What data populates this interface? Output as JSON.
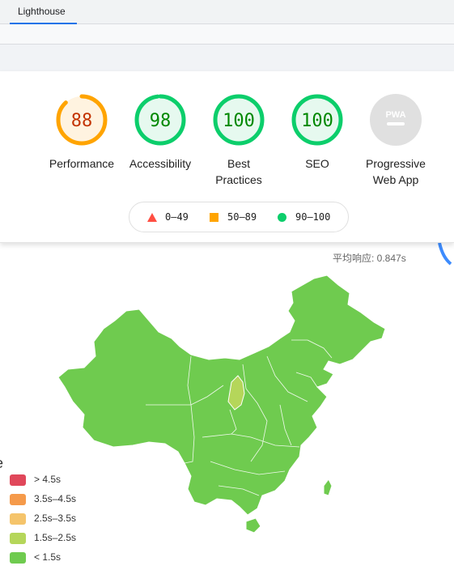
{
  "devtools": {
    "tab_label": "Lighthouse"
  },
  "scores": [
    {
      "label": "Performance",
      "value": "88",
      "status": "average",
      "color": "#ffa400",
      "bg": "#fff3e0",
      "fraction": 0.88
    },
    {
      "label": "Accessibility",
      "value": "98",
      "status": "pass",
      "color": "#0cce6b",
      "bg": "#e6f9ef",
      "fraction": 0.98
    },
    {
      "label": "Best Practices",
      "value": "100",
      "status": "pass",
      "color": "#0cce6b",
      "bg": "#e6f9ef",
      "fraction": 1.0
    },
    {
      "label": "SEO",
      "value": "100",
      "status": "pass",
      "color": "#0cce6b",
      "bg": "#e6f9ef",
      "fraction": 1.0
    },
    {
      "label": "Progressive Web App",
      "value": "",
      "status": "pwa",
      "color": "#9e9e9e",
      "bg": "#e0e0e0",
      "badge_text": "PWA"
    }
  ],
  "score_legend": [
    {
      "icon": "fail-triangle-icon",
      "range": "0–49",
      "color": "#ff4e42"
    },
    {
      "icon": "average-square-icon",
      "range": "50–89",
      "color": "#ffa400"
    },
    {
      "icon": "pass-circle-icon",
      "range": "90–100",
      "color": "#0cce6b"
    }
  ],
  "map_page": {
    "avg_response": "平均响应: 0.847s",
    "legend": [
      {
        "label": "> 4.5s",
        "color": "#e0475a"
      },
      {
        "label": "3.5s–4.5s",
        "color": "#f59a4a"
      },
      {
        "label": "2.5s–3.5s",
        "color": "#f5c46b"
      },
      {
        "label": "1.5s–2.5s",
        "color": "#b5d65a"
      },
      {
        "label": "< 1.5s",
        "color": "#6fcb4f"
      }
    ],
    "region_color": "#6fcb4f",
    "highlight_color": "#b5d65a"
  }
}
